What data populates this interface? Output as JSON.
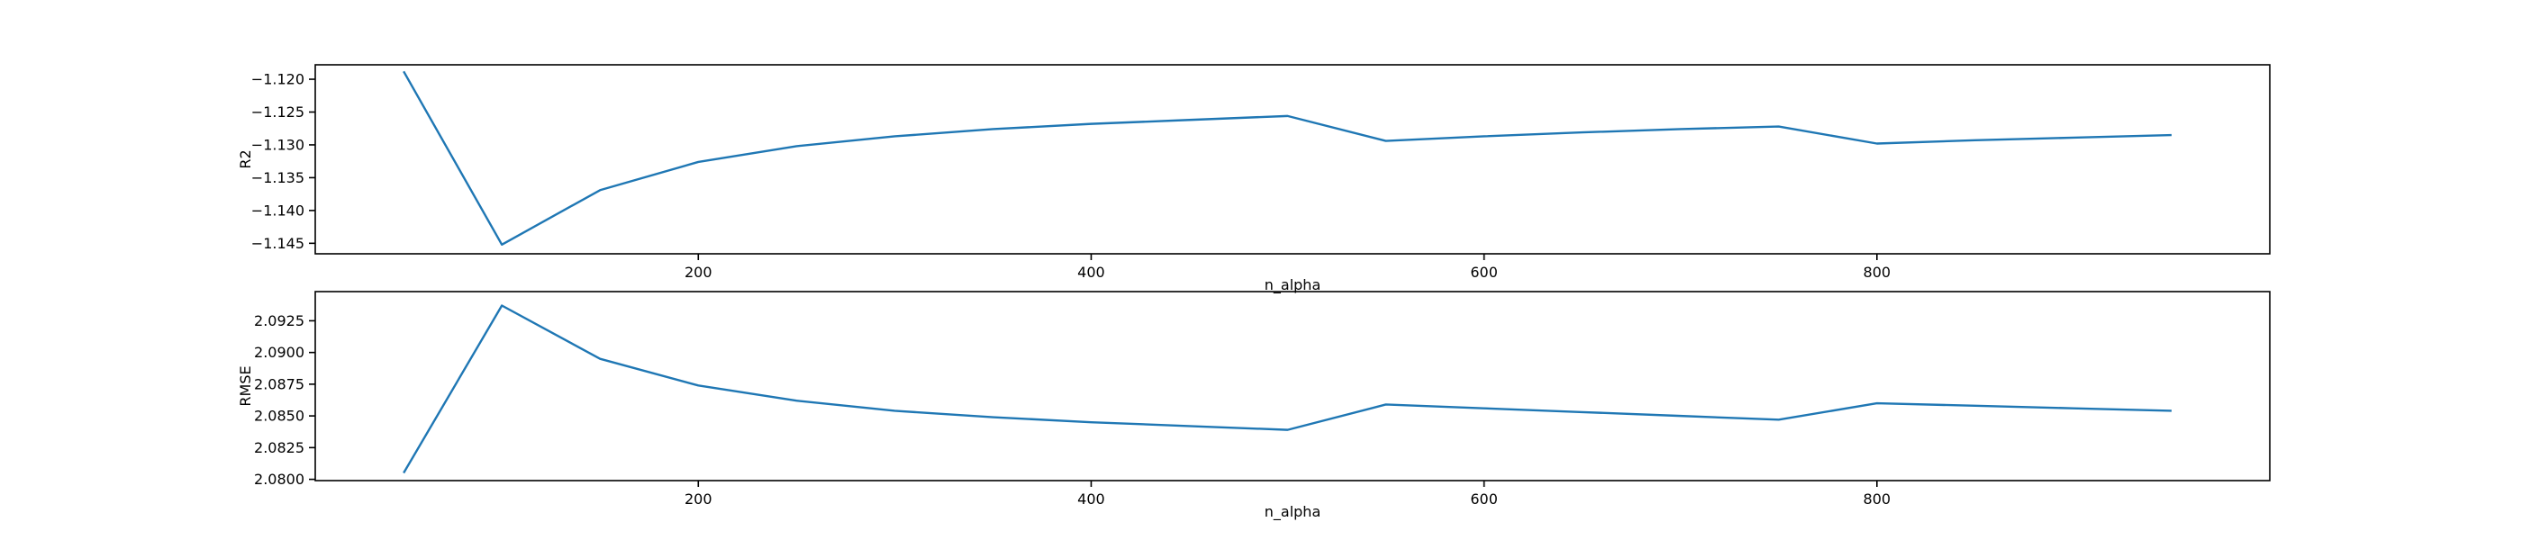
{
  "chart_data": [
    {
      "type": "line",
      "xlabel": "n_alpha",
      "ylabel": "R2",
      "xlim": [
        5,
        1000
      ],
      "ylim": [
        -1.1466,
        -1.1178
      ],
      "xticks": [
        200,
        400,
        600,
        800
      ],
      "yticks": [
        -1.12,
        -1.125,
        -1.13,
        -1.135,
        -1.14,
        -1.145
      ],
      "ytick_labels": [
        "−1.120",
        "−1.125",
        "−1.130",
        "−1.135",
        "−1.140",
        "−1.145"
      ],
      "grid": false,
      "color": "#1f77b4",
      "x": [
        50,
        100,
        150,
        200,
        250,
        300,
        350,
        400,
        450,
        500,
        550,
        600,
        650,
        700,
        750,
        800,
        850,
        900,
        950
      ],
      "y": [
        -1.1188,
        -1.1452,
        -1.1369,
        -1.1326,
        -1.1302,
        -1.1287,
        -1.1276,
        -1.1268,
        -1.1262,
        -1.1256,
        -1.1294,
        -1.1287,
        -1.1281,
        -1.1276,
        -1.1272,
        -1.1298,
        -1.1293,
        -1.1289,
        -1.1285
      ]
    },
    {
      "type": "line",
      "xlabel": "n_alpha",
      "ylabel": "RMSE",
      "xlim": [
        5,
        1000
      ],
      "ylim": [
        2.0799,
        2.0948
      ],
      "xticks": [
        200,
        400,
        600,
        800
      ],
      "yticks": [
        2.08,
        2.0825,
        2.085,
        2.0875,
        2.09,
        2.0925
      ],
      "ytick_labels": [
        "2.0800",
        "2.0825",
        "2.0850",
        "2.0875",
        "2.0900",
        "2.0925"
      ],
      "grid": false,
      "color": "#1f77b4",
      "x": [
        50,
        100,
        150,
        200,
        250,
        300,
        350,
        400,
        450,
        500,
        550,
        600,
        650,
        700,
        750,
        800,
        850,
        900,
        950
      ],
      "y": [
        2.0805,
        2.0937,
        2.0895,
        2.0874,
        2.0862,
        2.0854,
        2.0849,
        2.0845,
        2.0842,
        2.0839,
        2.0859,
        2.0856,
        2.0853,
        2.085,
        2.0847,
        2.086,
        2.0858,
        2.0856,
        2.0854
      ]
    }
  ]
}
